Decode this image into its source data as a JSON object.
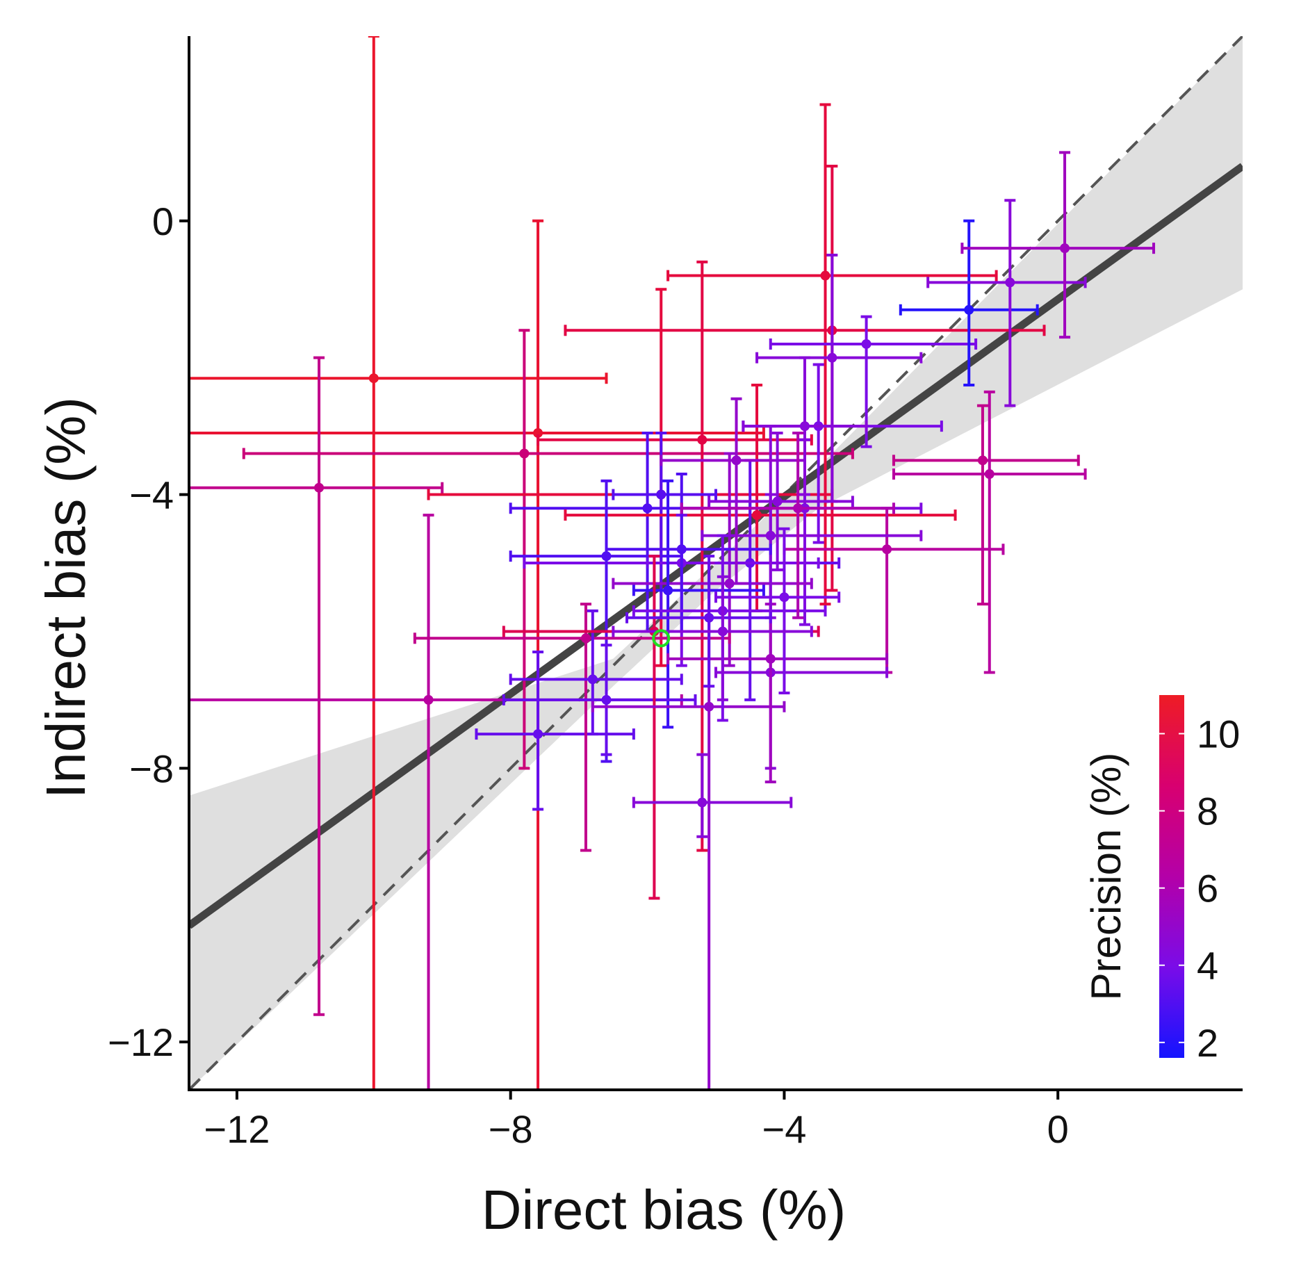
{
  "chart_data": {
    "type": "scatter",
    "xlabel": "Direct bias (%)",
    "ylabel": "Indirect bias (%)",
    "xlim": [
      -12.7,
      2.7
    ],
    "ylim": [
      -12.7,
      2.7
    ],
    "x_ticks": [
      -12,
      -8,
      -4,
      0
    ],
    "y_ticks": [
      -12,
      -8,
      -4,
      0
    ],
    "x_tick_labels": [
      "−12",
      "−8",
      "−4",
      "0"
    ],
    "y_tick_labels": [
      "−12",
      "−8",
      "−4",
      "0"
    ],
    "identity_line": {
      "style": "dashed",
      "color": "#555555"
    },
    "fit_line": {
      "color": "#444444",
      "points": [
        [
          -12.7,
          -10.3
        ],
        [
          2.7,
          0.8
        ]
      ]
    },
    "confidence_band": {
      "color": "#dcdcdc",
      "upper": [
        [
          -12.7,
          -8.4
        ],
        [
          -6.5,
          -6.4
        ],
        [
          -5.0,
          -5.0
        ],
        [
          -3.5,
          -3.6
        ],
        [
          2.7,
          2.7
        ]
      ],
      "lower": [
        [
          2.7,
          -1.0
        ],
        [
          -3.5,
          -4.2
        ],
        [
          -5.0,
          -5.4
        ],
        [
          -6.5,
          -6.8
        ],
        [
          -12.7,
          -12.7
        ]
      ]
    },
    "colorbar": {
      "title": "Precision (%)",
      "min": 1.6,
      "max": 11.0,
      "ticks": [
        2,
        4,
        6,
        8,
        10
      ],
      "tick_labels": [
        "2",
        "4",
        "6",
        "8",
        "10"
      ],
      "colors": [
        "#1414ff",
        "#7a0ce8",
        "#b400a8",
        "#e0004a",
        "#ee1c25"
      ]
    },
    "highlight": {
      "x": -5.8,
      "y": -6.1,
      "color": "#22dd22"
    },
    "points": [
      {
        "x": -10.0,
        "y": -2.3,
        "xlo": -12.7,
        "xhi": -6.6,
        "ylo": -12.7,
        "yhi": 2.7,
        "p": 10.5
      },
      {
        "x": -7.6,
        "y": -3.1,
        "xlo": -12.7,
        "xhi": -4.3,
        "ylo": -12.7,
        "yhi": 0.0,
        "p": 10.2
      },
      {
        "x": -10.8,
        "y": -3.9,
        "xlo": -12.7,
        "xhi": -9.0,
        "ylo": -11.6,
        "yhi": -2.0,
        "p": 7.0
      },
      {
        "x": -7.8,
        "y": -3.4,
        "xlo": -11.9,
        "xhi": -3.0,
        "ylo": -8.0,
        "yhi": -1.6,
        "p": 7.5
      },
      {
        "x": -9.2,
        "y": -7.0,
        "xlo": -12.7,
        "xhi": -5.5,
        "ylo": -12.7,
        "yhi": -4.3,
        "p": 6.5
      },
      {
        "x": -5.2,
        "y": -3.2,
        "xlo": -7.6,
        "xhi": -3.6,
        "ylo": -9.2,
        "yhi": -0.6,
        "p": 9.0
      },
      {
        "x": -3.4,
        "y": -0.8,
        "xlo": -5.7,
        "xhi": -0.9,
        "ylo": -5.6,
        "yhi": 1.7,
        "p": 9.5
      },
      {
        "x": -3.3,
        "y": -1.6,
        "xlo": -7.2,
        "xhi": -0.2,
        "ylo": -5.4,
        "yhi": 0.8,
        "p": 9.0
      },
      {
        "x": -5.8,
        "y": -4.0,
        "xlo": -9.2,
        "xhi": -3.3,
        "ylo": -6.5,
        "yhi": -1.0,
        "p": 9.5
      },
      {
        "x": -6.0,
        "y": -4.2,
        "xlo": -8.0,
        "xhi": -4.5,
        "ylo": -6.0,
        "yhi": -3.1,
        "p": 3.0
      },
      {
        "x": -5.8,
        "y": -4.0,
        "xlo": -6.5,
        "xhi": -5.0,
        "ylo": -5.8,
        "yhi": -3.1,
        "p": 3.2
      },
      {
        "x": -4.4,
        "y": -4.3,
        "xlo": -7.2,
        "xhi": -1.5,
        "ylo": -5.7,
        "yhi": -2.4,
        "p": 9.5
      },
      {
        "x": -3.3,
        "y": -2.0,
        "xlo": -4.4,
        "xhi": -2.0,
        "ylo": -4.1,
        "yhi": -0.5,
        "p": 4.5
      },
      {
        "x": -2.8,
        "y": -1.8,
        "xlo": -4.2,
        "xhi": -1.2,
        "ylo": -3.3,
        "yhi": -1.4,
        "p": 4.0
      },
      {
        "x": -1.3,
        "y": -1.3,
        "xlo": -2.3,
        "xhi": -0.3,
        "ylo": -2.4,
        "yhi": 0.0,
        "p": 2.0
      },
      {
        "x": -0.7,
        "y": -0.9,
        "xlo": -1.9,
        "xhi": 0.4,
        "ylo": -2.7,
        "yhi": 0.3,
        "p": 4.5
      },
      {
        "x": 0.1,
        "y": -0.4,
        "xlo": -1.4,
        "xhi": 1.4,
        "ylo": -1.7,
        "yhi": 1.0,
        "p": 5.5
      },
      {
        "x": -1.1,
        "y": -3.5,
        "xlo": -2.4,
        "xhi": 0.3,
        "ylo": -5.6,
        "yhi": -2.7,
        "p": 7.0
      },
      {
        "x": -1.0,
        "y": -3.7,
        "xlo": -2.4,
        "xhi": 0.4,
        "ylo": -6.6,
        "yhi": -2.5,
        "p": 6.5
      },
      {
        "x": -2.5,
        "y": -4.8,
        "xlo": -4.0,
        "xhi": -0.8,
        "ylo": -6.6,
        "yhi": -4.2,
        "p": 6.5
      },
      {
        "x": -3.5,
        "y": -3.0,
        "xlo": -4.6,
        "xhi": -1.7,
        "ylo": -4.7,
        "yhi": -2.1,
        "p": 4.0
      },
      {
        "x": -3.7,
        "y": -4.2,
        "xlo": -5.5,
        "xhi": -2.0,
        "ylo": -5.9,
        "yhi": -3.2,
        "p": 4.2
      },
      {
        "x": -4.2,
        "y": -6.6,
        "xlo": -5.0,
        "xhi": -2.5,
        "ylo": -8.0,
        "yhi": -4.0,
        "p": 4.5
      },
      {
        "x": -4.8,
        "y": -5.3,
        "xlo": -6.5,
        "xhi": -3.6,
        "ylo": -6.5,
        "yhi": -3.4,
        "p": 5.0
      },
      {
        "x": -4.5,
        "y": -5.0,
        "xlo": -6.0,
        "xhi": -3.2,
        "ylo": -7.0,
        "yhi": -3.5,
        "p": 3.5
      },
      {
        "x": -5.5,
        "y": -5.0,
        "xlo": -7.8,
        "xhi": -3.5,
        "ylo": -6.5,
        "yhi": -4.3,
        "p": 4.0
      },
      {
        "x": -6.6,
        "y": -4.9,
        "xlo": -8.0,
        "xhi": -5.5,
        "ylo": -7.9,
        "yhi": -3.8,
        "p": 3.0
      },
      {
        "x": -5.7,
        "y": -5.4,
        "xlo": -6.2,
        "xhi": -4.3,
        "ylo": -7.4,
        "yhi": -3.8,
        "p": 2.5
      },
      {
        "x": -7.6,
        "y": -7.5,
        "xlo": -8.5,
        "xhi": -6.2,
        "ylo": -8.6,
        "yhi": -6.3,
        "p": 3.5
      },
      {
        "x": -6.9,
        "y": -6.1,
        "xlo": -9.4,
        "xhi": -4.8,
        "ylo": -9.2,
        "yhi": -5.6,
        "p": 7.0
      },
      {
        "x": -6.8,
        "y": -6.7,
        "xlo": -8.0,
        "xhi": -5.5,
        "ylo": -7.5,
        "yhi": -5.7,
        "p": 3.5
      },
      {
        "x": -6.6,
        "y": -7.0,
        "xlo": -8.1,
        "xhi": -5.3,
        "ylo": -7.8,
        "yhi": -6.2,
        "p": 3.5
      },
      {
        "x": -5.9,
        "y": -6.0,
        "xlo": -8.1,
        "xhi": -3.5,
        "ylo": -9.9,
        "yhi": -4.9,
        "p": 8.5
      },
      {
        "x": -5.1,
        "y": -7.1,
        "xlo": -6.8,
        "xhi": -4.0,
        "ylo": -12.7,
        "yhi": -5.0,
        "p": 5.0
      },
      {
        "x": -5.2,
        "y": -8.5,
        "xlo": -6.2,
        "xhi": -3.9,
        "ylo": -9.0,
        "yhi": -7.8,
        "p": 4.5
      },
      {
        "x": -4.2,
        "y": -6.4,
        "xlo": -5.7,
        "xhi": -2.5,
        "ylo": -8.2,
        "yhi": -5.6,
        "p": 5.5
      },
      {
        "x": -4.2,
        "y": -4.6,
        "xlo": -5.2,
        "xhi": -2.0,
        "ylo": -5.8,
        "yhi": -3.0,
        "p": 4.5
      },
      {
        "x": -5.5,
        "y": -4.8,
        "xlo": -6.6,
        "xhi": -4.2,
        "ylo": -6.0,
        "yhi": -3.7,
        "p": 3.0
      },
      {
        "x": -4.9,
        "y": -5.7,
        "xlo": -6.2,
        "xhi": -3.4,
        "ylo": -7.3,
        "yhi": -4.6,
        "p": 4.0
      },
      {
        "x": -4.7,
        "y": -3.5,
        "xlo": -5.8,
        "xhi": -3.7,
        "ylo": -5.3,
        "yhi": -2.6,
        "p": 5.0
      },
      {
        "x": -4.1,
        "y": -4.1,
        "xlo": -5.1,
        "xhi": -3.0,
        "ylo": -5.1,
        "yhi": -3.1,
        "p": 4.5
      },
      {
        "x": -3.8,
        "y": -4.2,
        "xlo": -5.5,
        "xhi": -2.4,
        "ylo": -5.8,
        "yhi": -3.1,
        "p": 6.0
      },
      {
        "x": -5.1,
        "y": -5.8,
        "xlo": -6.3,
        "xhi": -4.2,
        "ylo": -6.8,
        "yhi": -4.9,
        "p": 3.5
      },
      {
        "x": -4.0,
        "y": -5.5,
        "xlo": -5.0,
        "xhi": -3.2,
        "ylo": -6.9,
        "yhi": -4.5,
        "p": 4.0
      },
      {
        "x": -3.7,
        "y": -3.0,
        "xlo": -4.6,
        "xhi": -2.8,
        "ylo": -4.0,
        "yhi": -2.0,
        "p": 4.5
      },
      {
        "x": -4.9,
        "y": -6.0,
        "xlo": -6.5,
        "xhi": -3.6,
        "ylo": -7.0,
        "yhi": -5.2,
        "p": 4.5
      }
    ]
  }
}
